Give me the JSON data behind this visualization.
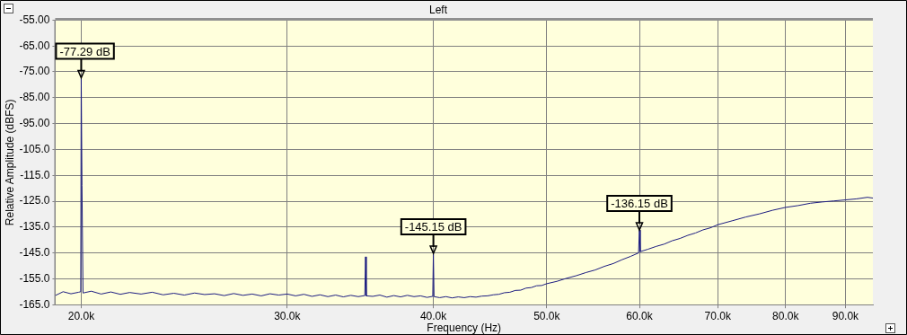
{
  "chart_data": {
    "type": "line",
    "title": "Left",
    "xlabel": "Frequency (Hz)",
    "ylabel": "Relative Amplitude (dBFS)",
    "log": "x",
    "grid": true,
    "marker": "none",
    "line_style": "solid",
    "xlim": [
      19000,
      95000
    ],
    "xticks": [
      {
        "value": 20000,
        "label": "20.0k"
      },
      {
        "value": 30000,
        "label": "30.0k"
      },
      {
        "value": 40000,
        "label": "40.0k"
      },
      {
        "value": 50000,
        "label": "50.0k"
      },
      {
        "value": 60000,
        "label": "60.0k"
      },
      {
        "value": 70000,
        "label": "70.0k"
      },
      {
        "value": 80000,
        "label": "80.0k"
      },
      {
        "value": 90000,
        "label": "90.0k"
      }
    ],
    "ylim": [
      -165,
      -55
    ],
    "yticks": [
      {
        "value": -55,
        "label": "-55.00"
      },
      {
        "value": -65,
        "label": "-65.00"
      },
      {
        "value": -75,
        "label": "-75.00"
      },
      {
        "value": -85,
        "label": "-85.00"
      },
      {
        "value": -95,
        "label": "-95.00"
      },
      {
        "value": -105,
        "label": "-105.0"
      },
      {
        "value": -115,
        "label": "-115.0"
      },
      {
        "value": -125,
        "label": "-125.0"
      },
      {
        "value": -135,
        "label": "-135.0"
      },
      {
        "value": -145,
        "label": "-145.0"
      },
      {
        "value": -155,
        "label": "-155.0"
      },
      {
        "value": -165,
        "label": "-165.0"
      }
    ],
    "series": [
      {
        "color": "#1c1c80",
        "x": [
          19000,
          19300,
          19600,
          19900,
          19980,
          20000,
          20030,
          20070,
          20400,
          20800,
          21200,
          21600,
          22000,
          22500,
          23000,
          23500,
          24000,
          24500,
          25000,
          25500,
          26000,
          26500,
          27000,
          27500,
          28000,
          28500,
          29000,
          29500,
          30000,
          30500,
          31000,
          31500,
          32000,
          32500,
          33000,
          33500,
          34000,
          34500,
          34950,
          35000,
          35050,
          35500,
          36000,
          36500,
          37000,
          37500,
          38000,
          38500,
          39000,
          39500,
          39950,
          40000,
          40050,
          40500,
          41000,
          41500,
          42000,
          42500,
          43000,
          43500,
          44000,
          44500,
          45000,
          45500,
          46000,
          46500,
          47000,
          47500,
          48000,
          48500,
          49000,
          49500,
          50000,
          51000,
          52000,
          53000,
          54000,
          55000,
          56000,
          57000,
          58000,
          59000,
          59900,
          60000,
          60100,
          61000,
          62000,
          63000,
          64000,
          65000,
          66000,
          67000,
          68000,
          69000,
          70000,
          72000,
          74000,
          76000,
          78000,
          80000,
          82000,
          84000,
          86000,
          88000,
          90000,
          92000,
          94000,
          95000
        ],
        "values": [
          -161.5,
          -160,
          -160.8,
          -160.2,
          -160,
          -77.29,
          -119,
          -160.5,
          -159.8,
          -160.9,
          -160.1,
          -161,
          -160.3,
          -160.9,
          -160.2,
          -161.2,
          -160.6,
          -161.3,
          -160.5,
          -161.1,
          -160.8,
          -161.5,
          -160.7,
          -161.4,
          -160.9,
          -161.6,
          -160.8,
          -161.3,
          -160.9,
          -161.6,
          -161,
          -161.8,
          -161.2,
          -161.9,
          -161.3,
          -162,
          -161.4,
          -161.9,
          -161.5,
          -146.5,
          -161.6,
          -161.8,
          -161.3,
          -162.1,
          -161.5,
          -162,
          -161.4,
          -161.9,
          -161.6,
          -162.2,
          -161.8,
          -145.15,
          -161.9,
          -162.3,
          -161.9,
          -162.4,
          -162,
          -162.3,
          -161.9,
          -162.1,
          -161.7,
          -161.6,
          -161.2,
          -161,
          -160.4,
          -160.2,
          -159.5,
          -159.4,
          -158.6,
          -158.4,
          -157.7,
          -157.6,
          -156.9,
          -156,
          -154.8,
          -153.8,
          -152.6,
          -151.6,
          -150.2,
          -149.1,
          -147.6,
          -146.3,
          -145,
          -136.15,
          -144.5,
          -143.6,
          -142.5,
          -141.6,
          -140.3,
          -139.4,
          -138.2,
          -137.3,
          -136.1,
          -135.3,
          -134.1,
          -132.6,
          -131.1,
          -129.9,
          -128.5,
          -127.4,
          -126.7,
          -125.8,
          -125.3,
          -124.9,
          -124.5,
          -124.1,
          -123.5,
          -123.8
        ]
      }
    ],
    "annotations": [
      {
        "text": "-77.29 dB",
        "x": 20000,
        "y": -77.29
      },
      {
        "text": "-145.15 dB",
        "x": 40000,
        "y": -145.15
      },
      {
        "text": "-136.15 dB",
        "x": 60000,
        "y": -136.15
      }
    ]
  }
}
